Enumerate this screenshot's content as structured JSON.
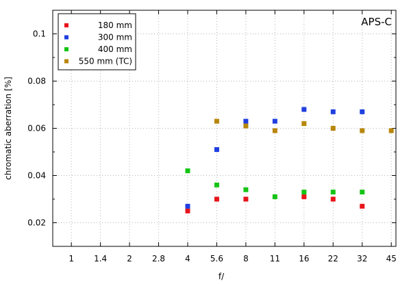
{
  "chart_data": {
    "type": "scatter",
    "xlabel": "f/",
    "ylabel": "chromatic aberration [%]",
    "annotation": "APS-C",
    "categories": [
      "1",
      "1.4",
      "2",
      "2.8",
      "4",
      "5.6",
      "8",
      "11",
      "16",
      "22",
      "32",
      "45"
    ],
    "ylim": [
      0.01,
      0.11
    ],
    "yticks": [
      0.02,
      0.04,
      0.06,
      0.08,
      0.1
    ],
    "ytick_labels": [
      "0.02",
      "0.04",
      "0.06",
      "0.08",
      "0.1"
    ],
    "grid": true,
    "legend_position": "top-left",
    "series": [
      {
        "name": "180 mm",
        "color": "#e8141b",
        "points": [
          {
            "x": "4",
            "y": 0.025
          },
          {
            "x": "5.6",
            "y": 0.03
          },
          {
            "x": "8",
            "y": 0.03
          },
          {
            "x": "16",
            "y": 0.031
          },
          {
            "x": "22",
            "y": 0.03
          },
          {
            "x": "32",
            "y": 0.027
          }
        ]
      },
      {
        "name": "300 mm",
        "color": "#1f3fe0",
        "points": [
          {
            "x": "4",
            "y": 0.027
          },
          {
            "x": "5.6",
            "y": 0.051
          },
          {
            "x": "8",
            "y": 0.063
          },
          {
            "x": "11",
            "y": 0.063
          },
          {
            "x": "16",
            "y": 0.068
          },
          {
            "x": "22",
            "y": 0.067
          },
          {
            "x": "32",
            "y": 0.067
          }
        ]
      },
      {
        "name": "400 mm",
        "color": "#14c414",
        "points": [
          {
            "x": "4",
            "y": 0.042
          },
          {
            "x": "5.6",
            "y": 0.036
          },
          {
            "x": "8",
            "y": 0.034
          },
          {
            "x": "11",
            "y": 0.031
          },
          {
            "x": "16",
            "y": 0.033
          },
          {
            "x": "22",
            "y": 0.033
          },
          {
            "x": "32",
            "y": 0.033
          }
        ]
      },
      {
        "name": "550 mm (TC)",
        "color": "#b8860b",
        "points": [
          {
            "x": "5.6",
            "y": 0.063
          },
          {
            "x": "8",
            "y": 0.061
          },
          {
            "x": "11",
            "y": 0.059
          },
          {
            "x": "16",
            "y": 0.062
          },
          {
            "x": "22",
            "y": 0.06
          },
          {
            "x": "32",
            "y": 0.059
          },
          {
            "x": "45",
            "y": 0.059
          }
        ]
      }
    ]
  }
}
